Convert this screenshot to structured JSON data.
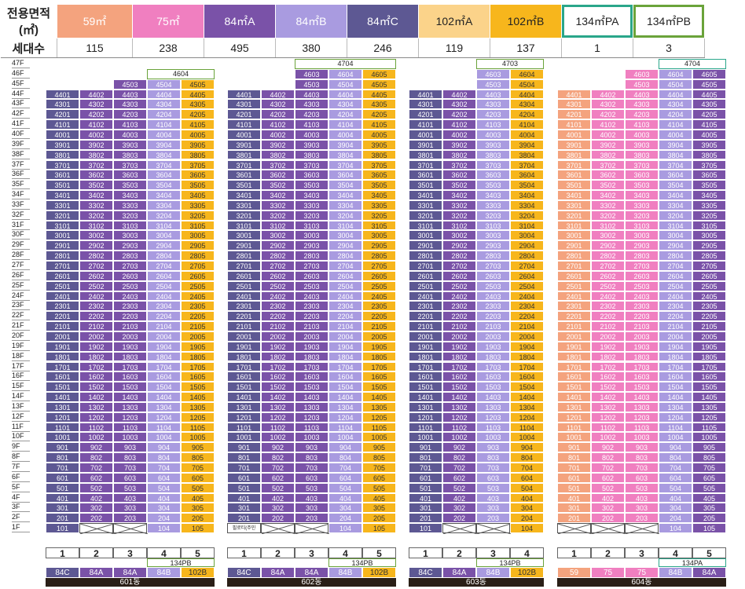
{
  "legend": {
    "row1_header": "전용면적(㎡)",
    "row2_header": "세대수",
    "types": [
      {
        "label": "59㎡",
        "count": "115",
        "color": "#f4a37e",
        "text": "#fff"
      },
      {
        "label": "75㎡",
        "count": "238",
        "color": "#f07fc0",
        "text": "#fff"
      },
      {
        "label": "84㎡A",
        "count": "495",
        "color": "#7a52a8",
        "text": "#fff"
      },
      {
        "label": "84㎡B",
        "count": "380",
        "color": "#a99be0",
        "text": "#fff"
      },
      {
        "label": "84㎡C",
        "count": "246",
        "color": "#5d5893",
        "text": "#fff"
      },
      {
        "label": "102㎡A",
        "count": "119",
        "color": "#fbd38a",
        "text": "#222"
      },
      {
        "label": "102㎡B",
        "count": "137",
        "color": "#f7b61c",
        "text": "#222"
      },
      {
        "label": "134㎡PA",
        "count": "1",
        "color": "#ffffff",
        "text": "#222",
        "border": "#2aa68a"
      },
      {
        "label": "134㎡PB",
        "count": "3",
        "color": "#ffffff",
        "text": "#222",
        "border": "#6aa33a"
      }
    ]
  },
  "floor_labels": [
    "47F",
    "46F",
    "45F",
    "44F",
    "43F",
    "42F",
    "41F",
    "40F",
    "39F",
    "38F",
    "37F",
    "36F",
    "35F",
    "34F",
    "33F",
    "32F",
    "31F",
    "30F",
    "29F",
    "28F",
    "27F",
    "26F",
    "25F",
    "24F",
    "23F",
    "22F",
    "21F",
    "20F",
    "19F",
    "18F",
    "17F",
    "16F",
    "15F",
    "14F",
    "13F",
    "12F",
    "11F",
    "10F",
    "9F",
    "8F",
    "7F",
    "6F",
    "5F",
    "4F",
    "3F",
    "2F",
    "1F"
  ],
  "buildings": [
    {
      "name": "601동",
      "lines": [
        "1",
        "2",
        "3",
        "4",
        "5"
      ],
      "types": [
        "84C",
        "84A",
        "84A",
        "84B",
        "102B"
      ],
      "colors": [
        "#5d5893",
        "#7a52a8",
        "#7a52a8",
        "#a99be0",
        "#f7b61c"
      ],
      "top_floor": [
        44,
        44,
        45,
        45,
        45
      ],
      "penthouse_label": "4604",
      "penthouse_floor": 46,
      "penthouse_cols": [
        3,
        4
      ],
      "pb_label": "134PB",
      "pb_border": "#6aa33a",
      "first_floor": [
        "101",
        "x",
        "x",
        "104",
        "105"
      ],
      "first_floor_text": ""
    },
    {
      "name": "602동",
      "lines": [
        "1",
        "2",
        "3",
        "4",
        "5"
      ],
      "types": [
        "84C",
        "84A",
        "84A",
        "84B",
        "102B"
      ],
      "colors": [
        "#5d5893",
        "#7a52a8",
        "#7a52a8",
        "#a99be0",
        "#f7b61c"
      ],
      "top_floor": [
        44,
        44,
        46,
        46,
        46
      ],
      "penthouse_label": "4704",
      "penthouse_floor": 47,
      "penthouse_cols": [
        2,
        3,
        4
      ],
      "pb_label": "134PB",
      "pb_border": "#6aa33a",
      "first_floor": [
        "pillotis",
        "x",
        "x",
        "104",
        "105"
      ],
      "first_floor_text": "필로티(주민"
    },
    {
      "name": "603동",
      "lines": [
        "1",
        "2",
        "3",
        "4"
      ],
      "types": [
        "84C",
        "84A",
        "84B",
        "102B"
      ],
      "colors": [
        "#5d5893",
        "#7a52a8",
        "#a99be0",
        "#f7b61c"
      ],
      "top_floor": [
        44,
        44,
        46,
        46
      ],
      "penthouse_label": "4703",
      "penthouse_floor": 47,
      "penthouse_cols": [
        2,
        3
      ],
      "pb_label": "134PB",
      "pb_border": "#6aa33a",
      "first_floor": [
        "101",
        "x",
        "x",
        "104"
      ],
      "first_floor_text": ""
    },
    {
      "name": "604동",
      "lines": [
        "1",
        "2",
        "3",
        "4",
        "5"
      ],
      "types": [
        "59",
        "75",
        "75",
        "84B",
        "84A"
      ],
      "colors": [
        "#f4a37e",
        "#f07fc0",
        "#f07fc0",
        "#a99be0",
        "#7a52a8"
      ],
      "top_floor": [
        44,
        44,
        46,
        46,
        46
      ],
      "penthouse_label": "4704",
      "penthouse_floor": 47,
      "penthouse_cols": [
        3,
        4
      ],
      "pb_label": "134PA",
      "pb_border": "#2aa68a",
      "first_floor": [
        "x",
        "x",
        "x",
        "104",
        "105"
      ],
      "first_floor_text": ""
    }
  ]
}
